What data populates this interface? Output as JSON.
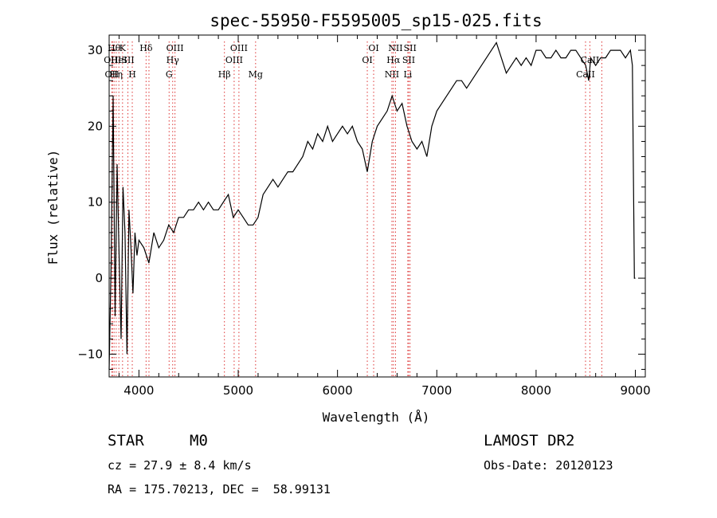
{
  "chart_data": {
    "type": "line",
    "title": "spec-55950-F5595005_sp15-025.fits",
    "xlabel": "Wavelength (Å)",
    "ylabel": "Flux (relative)",
    "xlim": [
      3700,
      9100
    ],
    "ylim": [
      -13,
      32
    ],
    "x_ticks": [
      4000,
      5000,
      6000,
      7000,
      8000,
      9000
    ],
    "y_ticks": [
      -10,
      0,
      10,
      20,
      30
    ],
    "grid": false,
    "series": [
      {
        "color": "#000000",
        "x": [
          3700,
          3720,
          3740,
          3760,
          3780,
          3800,
          3820,
          3840,
          3860,
          3880,
          3900,
          3920,
          3940,
          3960,
          3980,
          4000,
          4050,
          4100,
          4150,
          4200,
          4250,
          4300,
          4350,
          4400,
          4450,
          4500,
          4550,
          4600,
          4650,
          4700,
          4750,
          4800,
          4850,
          4900,
          4950,
          5000,
          5050,
          5100,
          5150,
          5200,
          5250,
          5300,
          5350,
          5400,
          5450,
          5500,
          5550,
          5600,
          5650,
          5700,
          5750,
          5800,
          5850,
          5900,
          5950,
          6000,
          6050,
          6100,
          6150,
          6200,
          6250,
          6300,
          6350,
          6400,
          6450,
          6500,
          6550,
          6600,
          6650,
          6700,
          6750,
          6800,
          6850,
          6900,
          6950,
          7000,
          7050,
          7100,
          7150,
          7200,
          7250,
          7300,
          7350,
          7400,
          7450,
          7500,
          7550,
          7600,
          7650,
          7700,
          7750,
          7800,
          7850,
          7900,
          7950,
          8000,
          8050,
          8100,
          8150,
          8200,
          8250,
          8300,
          8350,
          8400,
          8450,
          8500,
          8530,
          8550,
          8600,
          8650,
          8700,
          8750,
          8800,
          8850,
          8900,
          8950,
          8970,
          8990,
          9000
        ],
        "values": [
          -12,
          2,
          24,
          -5,
          15,
          3,
          -8,
          12,
          6,
          -10,
          9,
          4,
          -2,
          6,
          3,
          5,
          4,
          2,
          6,
          4,
          5,
          7,
          6,
          8,
          8,
          9,
          9,
          10,
          9,
          10,
          9,
          9,
          10,
          11,
          8,
          9,
          8,
          7,
          7,
          8,
          11,
          12,
          13,
          12,
          13,
          14,
          14,
          15,
          16,
          18,
          17,
          19,
          18,
          20,
          18,
          19,
          20,
          19,
          20,
          18,
          17,
          14,
          18,
          20,
          21,
          22,
          24,
          22,
          23,
          20,
          18,
          17,
          18,
          16,
          20,
          22,
          23,
          24,
          25,
          26,
          26,
          25,
          26,
          27,
          28,
          29,
          30,
          31,
          29,
          27,
          28,
          29,
          28,
          29,
          28,
          30,
          30,
          29,
          29,
          30,
          29,
          29,
          30,
          30,
          29,
          28,
          26,
          29,
          28,
          29,
          29,
          30,
          30,
          30,
          29,
          30,
          28,
          0,
          0
        ]
      }
    ],
    "line_markers": [
      {
        "x": 3727,
        "label": "OII",
        "row": 3
      },
      {
        "x": 3734,
        "label": "OIII",
        "row": 2
      },
      {
        "x": 3750,
        "label": "Hθ",
        "row": 1
      },
      {
        "x": 3771,
        "label": "Hη",
        "row": 3
      },
      {
        "x": 3798,
        "label": "HeI",
        "row": 2
      },
      {
        "x": 3835,
        "label": "K",
        "row": 1
      },
      {
        "x": 3889,
        "label": "SII",
        "row": 2
      },
      {
        "x": 3933,
        "label": "H",
        "row": 3
      },
      {
        "x": 4072,
        "label": "Hδ",
        "row": 1
      },
      {
        "x": 4101,
        "label": "",
        "row": 0
      },
      {
        "x": 4304,
        "label": "G",
        "row": 3
      },
      {
        "x": 4340,
        "label": "Hγ",
        "row": 2
      },
      {
        "x": 4363,
        "label": "OIII",
        "row": 1
      },
      {
        "x": 4861,
        "label": "Hβ",
        "row": 3
      },
      {
        "x": 4959,
        "label": "OIII",
        "row": 2
      },
      {
        "x": 5007,
        "label": "OIII",
        "row": 1
      },
      {
        "x": 5175,
        "label": "Mg",
        "row": 3
      },
      {
        "x": 6300,
        "label": "OI",
        "row": 2
      },
      {
        "x": 6364,
        "label": "OI",
        "row": 1
      },
      {
        "x": 6548,
        "label": "NII",
        "row": 3
      },
      {
        "x": 6563,
        "label": "Hα",
        "row": 2
      },
      {
        "x": 6584,
        "label": "NII",
        "row": 1
      },
      {
        "x": 6708,
        "label": "Li",
        "row": 3
      },
      {
        "x": 6717,
        "label": "SII",
        "row": 2
      },
      {
        "x": 6731,
        "label": "SII",
        "row": 1
      },
      {
        "x": 8498,
        "label": "CaII",
        "row": 3
      },
      {
        "x": 8542,
        "label": "CaII",
        "row": 2
      },
      {
        "x": 8662,
        "label": "",
        "row": 0
      }
    ]
  },
  "info": {
    "object_class": "STAR",
    "subclass": "M0",
    "survey": "LAMOST DR2",
    "redshift": "cz = 27.9 ± 8.4 km/s",
    "obs_date": "Obs-Date: 20120123",
    "coords": "RA = 175.70213, DEC =  58.99131"
  }
}
